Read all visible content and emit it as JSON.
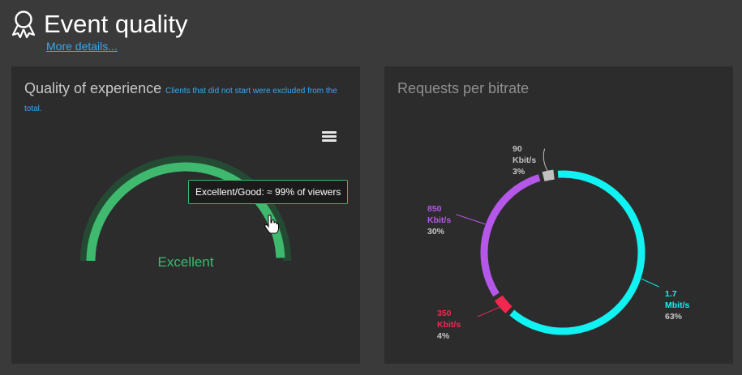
{
  "header": {
    "title": "Event quality",
    "details_link": "More details...",
    "icon": "award-ribbon-icon"
  },
  "qoe_panel": {
    "title": "Quality of experience",
    "note": "Clients that did not start were excluded from the total.",
    "menu_icon": "hamburger-menu-icon",
    "gauge": {
      "label": "Excellent",
      "value_percent": 99,
      "tooltip": "Excellent/Good: ≈ 99% of viewers",
      "color": "#3fb96e",
      "track_color": "#244a33"
    }
  },
  "bitrate_panel": {
    "title": "Requests per bitrate",
    "chart_data": {
      "type": "pie",
      "series": [
        {
          "label_value": "1.7",
          "label_unit": "Mbit/s",
          "percent_label": "63%",
          "percent": 63,
          "color": "#11f2f2"
        },
        {
          "label_value": "350",
          "label_unit": "Kbit/s",
          "percent_label": "4%",
          "percent": 4,
          "color": "#f2284f"
        },
        {
          "label_value": "850",
          "label_unit": "Kbit/s",
          "percent_label": "30%",
          "percent": 30,
          "color": "#b557e8"
        },
        {
          "label_value": "90",
          "label_unit": "Kbit/s",
          "percent_label": "3%",
          "percent": 3,
          "color": "#c0c0c0"
        }
      ]
    }
  },
  "colors": {
    "background": "#3a3a3a",
    "panel": "#2c2c2d",
    "link": "#33aaf2"
  }
}
